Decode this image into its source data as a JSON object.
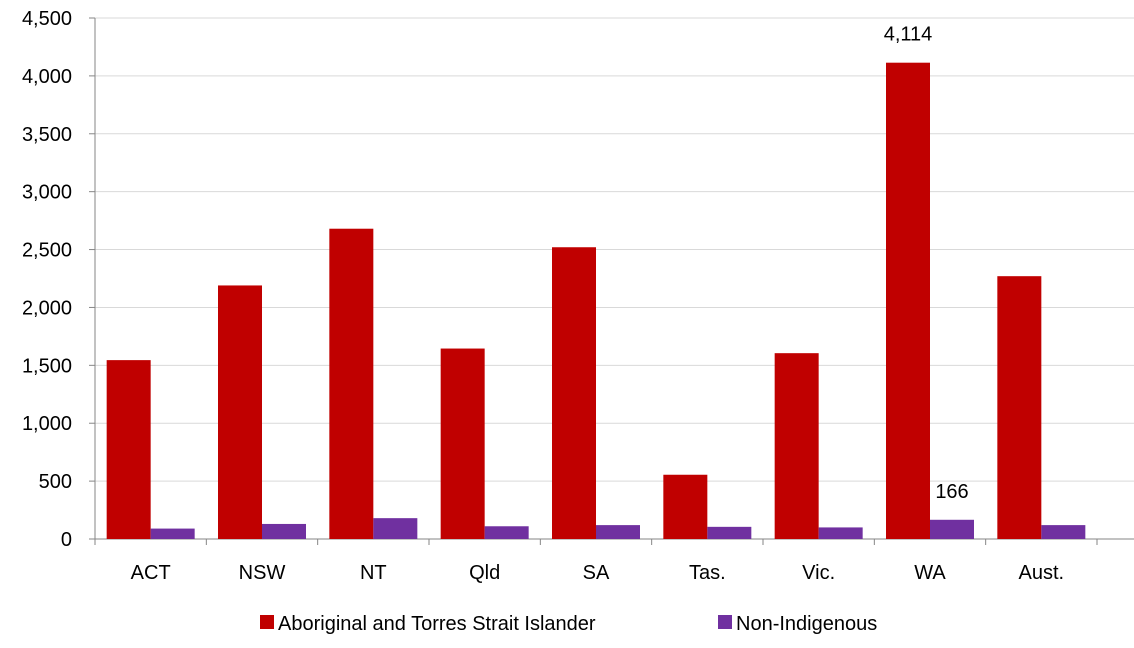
{
  "chart_data": {
    "type": "bar",
    "title": "",
    "xlabel": "",
    "ylabel": "",
    "ylim": [
      0,
      4500
    ],
    "yticks": [
      0,
      500,
      1000,
      1500,
      2000,
      2500,
      3000,
      3500,
      4000,
      4500
    ],
    "ytick_labels": [
      "0",
      "500",
      "1,000",
      "1,500",
      "2,000",
      "2,500",
      "3,000",
      "3,500",
      "4,000",
      "4,500"
    ],
    "grid": true,
    "legend_position": "bottom",
    "categories": [
      "ACT",
      "NSW",
      "NT",
      "Qld",
      "SA",
      "Tas.",
      "Vic.",
      "WA",
      "Aust."
    ],
    "series": [
      {
        "name": "Aboriginal and Torres Strait Islander",
        "color": "#c00000",
        "values": [
          1545,
          2190,
          2680,
          1645,
          2520,
          555,
          1605,
          4114,
          2270
        ]
      },
      {
        "name": "Non-Indigenous",
        "color": "#7030a0",
        "values": [
          90,
          130,
          180,
          110,
          120,
          105,
          100,
          166,
          120
        ]
      }
    ],
    "annotations": [
      {
        "series": 0,
        "category": "WA",
        "text": "4,114"
      },
      {
        "series": 1,
        "category": "WA",
        "text": "166"
      }
    ]
  }
}
